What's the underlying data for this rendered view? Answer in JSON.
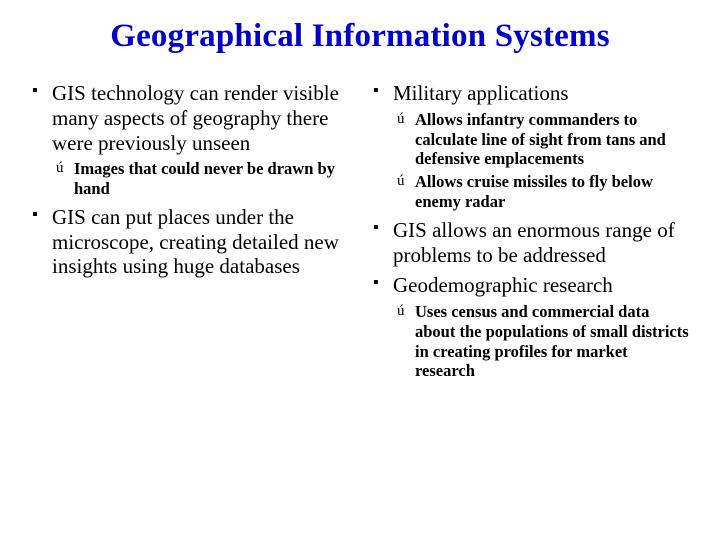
{
  "title": "Geographical Information Systems",
  "title_color": "#0000cc",
  "text_color": "#000000",
  "background_color": "#ffffff",
  "left": {
    "items": [
      {
        "text": "GIS technology can render visible many aspects of geography there were previously unseen",
        "sub": [
          {
            "text": "Images that could never be drawn by hand"
          }
        ]
      },
      {
        "text": "GIS can put places under the microscope, creating detailed new insights using huge databases",
        "sub": []
      }
    ]
  },
  "right": {
    "items": [
      {
        "text": "Military applications",
        "sub": [
          {
            "text": "Allows infantry commanders to calculate line of sight from tans and defensive emplacements"
          },
          {
            "text": "Allows cruise missiles to fly below enemy radar"
          }
        ]
      },
      {
        "text": "GIS allows an enormous range of problems to be addressed",
        "sub": []
      },
      {
        "text": "Geodemographic research",
        "sub": [
          {
            "text": "Uses census and commercial data about the populations of small districts in creating profiles for market research"
          }
        ]
      }
    ]
  },
  "typography": {
    "title_fontsize": 33,
    "l1_fontsize": 21,
    "l2_fontsize": 16.5,
    "font_family": "Times New Roman"
  }
}
